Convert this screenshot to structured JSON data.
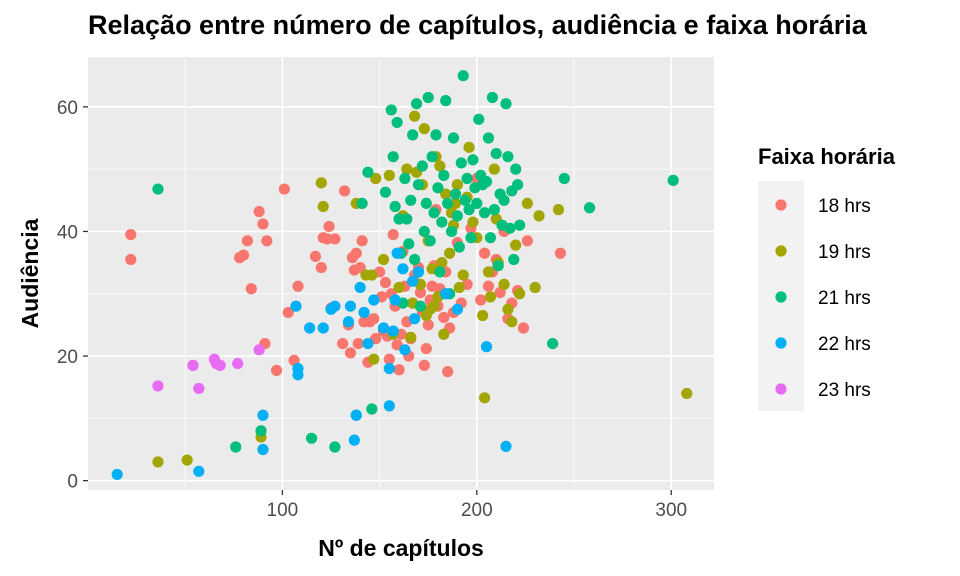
{
  "chart_data": {
    "type": "scatter",
    "title": "Relação entre número de capítulos, audiência e faixa horária",
    "xlabel": "Nº de capítulos",
    "ylabel": "Audiência",
    "xlim": [
      0,
      322
    ],
    "ylim": [
      -1.5,
      68
    ],
    "xticks": [
      100,
      200,
      300
    ],
    "yticks": [
      0,
      20,
      40,
      60
    ],
    "grid": true,
    "legend": {
      "title": "Faixa horária",
      "position": "right"
    },
    "series": [
      {
        "name": "18 hrs",
        "color": "#F8766D",
        "points": [
          [
            22,
            39.5
          ],
          [
            22,
            35.5
          ],
          [
            78,
            35.8
          ],
          [
            80,
            36.2
          ],
          [
            82,
            38.5
          ],
          [
            84,
            30.8
          ],
          [
            88,
            43.2
          ],
          [
            90,
            41.2
          ],
          [
            91,
            22
          ],
          [
            92,
            38.5
          ],
          [
            97,
            17.7
          ],
          [
            101,
            46.8
          ],
          [
            103,
            27
          ],
          [
            106,
            19.3
          ],
          [
            108,
            31.2
          ],
          [
            117,
            36
          ],
          [
            120,
            34.2
          ],
          [
            121,
            39
          ],
          [
            123,
            38.8
          ],
          [
            124,
            40.8
          ],
          [
            125,
            27.7
          ],
          [
            127,
            38.8
          ],
          [
            131,
            22
          ],
          [
            132,
            46.5
          ],
          [
            134,
            25
          ],
          [
            135,
            20.5
          ],
          [
            136,
            35.8
          ],
          [
            137,
            33.8
          ],
          [
            138,
            36.5
          ],
          [
            139,
            22
          ],
          [
            140,
            34.2
          ],
          [
            141,
            38.5
          ],
          [
            142,
            25.5
          ],
          [
            144,
            19
          ],
          [
            145,
            25.5
          ],
          [
            147,
            26
          ],
          [
            148,
            22.8
          ],
          [
            150,
            33.5
          ],
          [
            151,
            29.5
          ],
          [
            152,
            24
          ],
          [
            153,
            31.8
          ],
          [
            154,
            23.2
          ],
          [
            155,
            19.5
          ],
          [
            156,
            30
          ],
          [
            157,
            39.5
          ],
          [
            158,
            28
          ],
          [
            159,
            21.8
          ],
          [
            160,
            17.8
          ],
          [
            161,
            23.5
          ],
          [
            162,
            36.8
          ],
          [
            163,
            31.2
          ],
          [
            164,
            25.5
          ],
          [
            165,
            20
          ],
          [
            166,
            22.8
          ],
          [
            167,
            28.5
          ],
          [
            168,
            33
          ],
          [
            170,
            34.2
          ],
          [
            171,
            30.2
          ],
          [
            172,
            27.2
          ],
          [
            173,
            18.5
          ],
          [
            174,
            21.2
          ],
          [
            175,
            25
          ],
          [
            176,
            29
          ],
          [
            177,
            31.2
          ],
          [
            178,
            34.5
          ],
          [
            179,
            43.5
          ],
          [
            180,
            28
          ],
          [
            181,
            30.8
          ],
          [
            183,
            26.2
          ],
          [
            184,
            33.5
          ],
          [
            185,
            17.5
          ],
          [
            186,
            24.5
          ],
          [
            188,
            27
          ],
          [
            190,
            38.2
          ],
          [
            192,
            28.5
          ],
          [
            195,
            31.5
          ],
          [
            197,
            40.5
          ],
          [
            200,
            48.5
          ],
          [
            202,
            29
          ],
          [
            204,
            36.5
          ],
          [
            206,
            31.2
          ],
          [
            208,
            33.5
          ],
          [
            210,
            35.5
          ],
          [
            212,
            30.2
          ],
          [
            214,
            40
          ],
          [
            216,
            26
          ],
          [
            218,
            28.5
          ],
          [
            221,
            30.5
          ],
          [
            224,
            24.5
          ],
          [
            226,
            38.5
          ],
          [
            243,
            36.5
          ]
        ]
      },
      {
        "name": "19 hrs",
        "color": "#A3A500",
        "points": [
          [
            36,
            3
          ],
          [
            51,
            3.3
          ],
          [
            89,
            7
          ],
          [
            120,
            47.8
          ],
          [
            121,
            44
          ],
          [
            138,
            44.5
          ],
          [
            143,
            33
          ],
          [
            146,
            33
          ],
          [
            147,
            19.5
          ],
          [
            148,
            48.5
          ],
          [
            152,
            35.5
          ],
          [
            155,
            49
          ],
          [
            157,
            23.5
          ],
          [
            160,
            31
          ],
          [
            162,
            42.5
          ],
          [
            164,
            50
          ],
          [
            166,
            23
          ],
          [
            167,
            28.5
          ],
          [
            168,
            58.5
          ],
          [
            169,
            49.5
          ],
          [
            171,
            31.5
          ],
          [
            172,
            47.5
          ],
          [
            173,
            56.5
          ],
          [
            174,
            26.5
          ],
          [
            175,
            38.5
          ],
          [
            176,
            27.5
          ],
          [
            177,
            34
          ],
          [
            178,
            28
          ],
          [
            179,
            52
          ],
          [
            180,
            29.5
          ],
          [
            181,
            50.5
          ],
          [
            182,
            35
          ],
          [
            183,
            23.5
          ],
          [
            184,
            46
          ],
          [
            186,
            36.5
          ],
          [
            187,
            43
          ],
          [
            188,
            41
          ],
          [
            189,
            44.5
          ],
          [
            190,
            47.5
          ],
          [
            191,
            31
          ],
          [
            193,
            33
          ],
          [
            195,
            45.5
          ],
          [
            196,
            53.5
          ],
          [
            198,
            41.5
          ],
          [
            200,
            39
          ],
          [
            203,
            26.5
          ],
          [
            204,
            13.3
          ],
          [
            206,
            33.5
          ],
          [
            207,
            29.5
          ],
          [
            209,
            50
          ],
          [
            210,
            42
          ],
          [
            211,
            35
          ],
          [
            214,
            31.5
          ],
          [
            216,
            27.5
          ],
          [
            218,
            25.5
          ],
          [
            220,
            37.8
          ],
          [
            222,
            30
          ],
          [
            226,
            44.5
          ],
          [
            230,
            31
          ],
          [
            232,
            42.5
          ],
          [
            242,
            43.5
          ],
          [
            308,
            14
          ]
        ]
      },
      {
        "name": "21 hrs",
        "color": "#00BF7D",
        "points": [
          [
            36,
            46.8
          ],
          [
            76,
            5.4
          ],
          [
            89,
            8
          ],
          [
            115,
            6.8
          ],
          [
            127,
            5.4
          ],
          [
            138,
            10.5
          ],
          [
            141,
            44.5
          ],
          [
            144,
            49.5
          ],
          [
            146,
            11.5
          ],
          [
            153,
            46.3
          ],
          [
            156,
            59.5
          ],
          [
            157,
            52
          ],
          [
            158,
            44
          ],
          [
            159,
            57.5
          ],
          [
            160,
            42
          ],
          [
            161,
            36.5
          ],
          [
            162,
            28.5
          ],
          [
            163,
            48.5
          ],
          [
            164,
            42
          ],
          [
            165,
            38
          ],
          [
            166,
            45
          ],
          [
            167,
            55.5
          ],
          [
            168,
            35.5
          ],
          [
            169,
            60.5
          ],
          [
            170,
            47.5
          ],
          [
            171,
            28
          ],
          [
            172,
            50.5
          ],
          [
            173,
            40
          ],
          [
            174,
            44.5
          ],
          [
            175,
            61.5
          ],
          [
            176,
            38.5
          ],
          [
            177,
            52
          ],
          [
            178,
            43
          ],
          [
            179,
            55.5
          ],
          [
            180,
            47
          ],
          [
            181,
            33.5
          ],
          [
            182,
            41.5
          ],
          [
            183,
            49
          ],
          [
            184,
            61
          ],
          [
            185,
            44.5
          ],
          [
            186,
            30
          ],
          [
            187,
            40
          ],
          [
            188,
            55
          ],
          [
            189,
            46
          ],
          [
            190,
            42.5
          ],
          [
            191,
            37.5
          ],
          [
            192,
            51
          ],
          [
            193,
            65
          ],
          [
            194,
            45
          ],
          [
            195,
            48.5
          ],
          [
            196,
            43.5
          ],
          [
            197,
            39
          ],
          [
            198,
            51.5
          ],
          [
            199,
            47
          ],
          [
            200,
            44.5
          ],
          [
            201,
            58
          ],
          [
            202,
            49
          ],
          [
            203,
            47.5
          ],
          [
            204,
            43
          ],
          [
            205,
            48
          ],
          [
            206,
            55
          ],
          [
            207,
            39
          ],
          [
            208,
            61.5
          ],
          [
            209,
            43.5
          ],
          [
            210,
            52.5
          ],
          [
            211,
            34.5
          ],
          [
            212,
            46
          ],
          [
            213,
            41
          ],
          [
            214,
            45
          ],
          [
            215,
            60.5
          ],
          [
            216,
            52
          ],
          [
            217,
            40.5
          ],
          [
            218,
            46.5
          ],
          [
            219,
            35.5
          ],
          [
            220,
            50
          ],
          [
            221,
            47.5
          ],
          [
            222,
            41
          ],
          [
            239,
            22
          ],
          [
            245,
            48.5
          ],
          [
            258,
            43.8
          ],
          [
            301,
            48.2
          ]
        ]
      },
      {
        "name": "22 hrs",
        "color": "#00B0F6",
        "points": [
          [
            15,
            1
          ],
          [
            57,
            1.5
          ],
          [
            90,
            5
          ],
          [
            90,
            10.5
          ],
          [
            107,
            28
          ],
          [
            108,
            18
          ],
          [
            108,
            17
          ],
          [
            114,
            24.5
          ],
          [
            121,
            24.5
          ],
          [
            125,
            27.5
          ],
          [
            127,
            28
          ],
          [
            134,
            25.5
          ],
          [
            135,
            28
          ],
          [
            137,
            6.5
          ],
          [
            138,
            10.5
          ],
          [
            140,
            31
          ],
          [
            142,
            27
          ],
          [
            144,
            22
          ],
          [
            147,
            29
          ],
          [
            152,
            24.5
          ],
          [
            155,
            18
          ],
          [
            155,
            12
          ],
          [
            157,
            24
          ],
          [
            158,
            29
          ],
          [
            159,
            36.5
          ],
          [
            162,
            34
          ],
          [
            163,
            21
          ],
          [
            167,
            32
          ],
          [
            168,
            26
          ],
          [
            170,
            33.5
          ],
          [
            184,
            30
          ],
          [
            190,
            27.5
          ],
          [
            205,
            21.5
          ],
          [
            215,
            5.5
          ]
        ]
      },
      {
        "name": "23 hrs",
        "color": "#E76BF3",
        "points": [
          [
            36,
            15.2
          ],
          [
            54,
            18.5
          ],
          [
            57,
            14.8
          ],
          [
            65,
            19.5
          ],
          [
            66,
            18.8
          ],
          [
            68,
            18.5
          ],
          [
            77,
            18.8
          ],
          [
            88,
            21
          ]
        ]
      }
    ]
  }
}
